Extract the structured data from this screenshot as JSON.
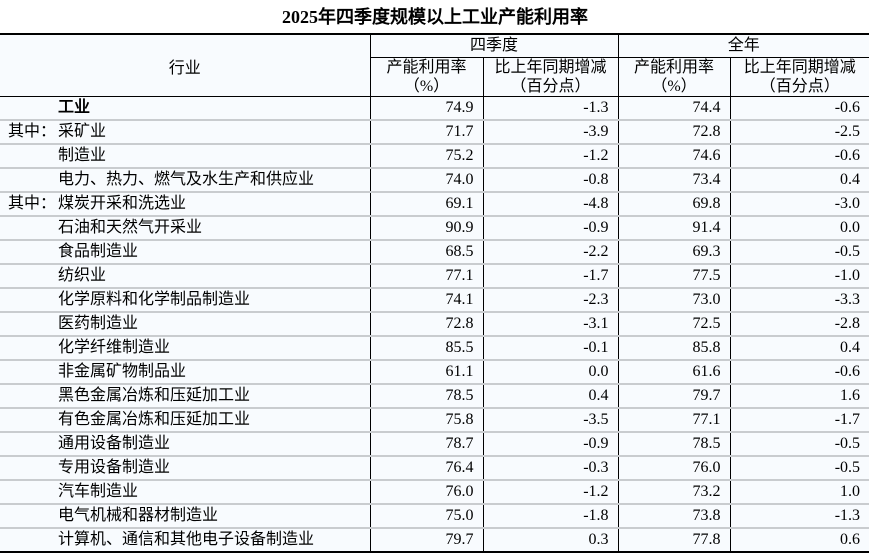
{
  "title": "2025年四季度规模以上工业产能利用率",
  "colors": {
    "table_background": "#f8fbfe",
    "row_divider_gray": "#c9cccf",
    "table_border_black": "#000000"
  },
  "table": {
    "industry_col_header": "行业",
    "col_groups": [
      {
        "label": "四季度",
        "subcols": [
          {
            "line1": "产能利用率",
            "line2": "（%）"
          },
          {
            "line1": "比上年同期增减",
            "line2": "（百分点）"
          }
        ]
      },
      {
        "label": "全年",
        "subcols": [
          {
            "line1": "产能利用率",
            "line2": "（%）"
          },
          {
            "line1": "比上年同期增减",
            "line2": "（百分点）"
          }
        ]
      }
    ],
    "rows": [
      {
        "prefix": "",
        "name": "工业",
        "bold": true,
        "values": [
          "74.9",
          "-1.3",
          "74.4",
          "-0.6"
        ]
      },
      {
        "prefix": "其中：",
        "name": "采矿业",
        "bold": false,
        "values": [
          "71.7",
          "-3.9",
          "72.8",
          "-2.5"
        ]
      },
      {
        "prefix": "",
        "name": "制造业",
        "bold": false,
        "values": [
          "75.2",
          "-1.2",
          "74.6",
          "-0.6"
        ]
      },
      {
        "prefix": "",
        "name": "电力、热力、燃气及水生产和供应业",
        "bold": false,
        "values": [
          "74.0",
          "-0.8",
          "73.4",
          "0.4"
        ]
      },
      {
        "prefix": "其中：",
        "name": "煤炭开采和洗选业",
        "bold": false,
        "values": [
          "69.1",
          "-4.8",
          "69.8",
          "-3.0"
        ]
      },
      {
        "prefix": "",
        "name": "石油和天然气开采业",
        "bold": false,
        "values": [
          "90.9",
          "-0.9",
          "91.4",
          "0.0"
        ]
      },
      {
        "prefix": "",
        "name": "食品制造业",
        "bold": false,
        "values": [
          "68.5",
          "-2.2",
          "69.3",
          "-0.5"
        ]
      },
      {
        "prefix": "",
        "name": "纺织业",
        "bold": false,
        "values": [
          "77.1",
          "-1.7",
          "77.5",
          "-1.0"
        ]
      },
      {
        "prefix": "",
        "name": "化学原料和化学制品制造业",
        "bold": false,
        "values": [
          "74.1",
          "-2.3",
          "73.0",
          "-3.3"
        ]
      },
      {
        "prefix": "",
        "name": "医药制造业",
        "bold": false,
        "values": [
          "72.8",
          "-3.1",
          "72.5",
          "-2.8"
        ]
      },
      {
        "prefix": "",
        "name": "化学纤维制造业",
        "bold": false,
        "values": [
          "85.5",
          "-0.1",
          "85.8",
          "0.4"
        ]
      },
      {
        "prefix": "",
        "name": "非金属矿物制品业",
        "bold": false,
        "values": [
          "61.1",
          "0.0",
          "61.6",
          "-0.6"
        ]
      },
      {
        "prefix": "",
        "name": "黑色金属冶炼和压延加工业",
        "bold": false,
        "values": [
          "78.5",
          "0.4",
          "79.7",
          "1.6"
        ]
      },
      {
        "prefix": "",
        "name": "有色金属冶炼和压延加工业",
        "bold": false,
        "values": [
          "75.8",
          "-3.5",
          "77.1",
          "-1.7"
        ]
      },
      {
        "prefix": "",
        "name": "通用设备制造业",
        "bold": false,
        "values": [
          "78.7",
          "-0.9",
          "78.5",
          "-0.5"
        ]
      },
      {
        "prefix": "",
        "name": "专用设备制造业",
        "bold": false,
        "values": [
          "76.4",
          "-0.3",
          "76.0",
          "-0.5"
        ]
      },
      {
        "prefix": "",
        "name": "汽车制造业",
        "bold": false,
        "values": [
          "76.0",
          "-1.2",
          "73.2",
          "1.0"
        ]
      },
      {
        "prefix": "",
        "name": "电气机械和器材制造业",
        "bold": false,
        "values": [
          "75.0",
          "-1.8",
          "73.8",
          "-1.3"
        ]
      },
      {
        "prefix": "",
        "name": "计算机、通信和其他电子设备制造业",
        "bold": false,
        "values": [
          "79.7",
          "0.3",
          "77.8",
          "0.6"
        ]
      }
    ]
  },
  "chart_data": {
    "type": "table",
    "title": "2025年四季度规模以上工业产能利用率",
    "columns": [
      "行业",
      "四季度产能利用率（%）",
      "四季度比上年同期增减（百分点）",
      "全年产能利用率（%）",
      "全年比上年同期增减（百分点）"
    ],
    "rows": [
      [
        "工业",
        74.9,
        -1.3,
        74.4,
        -0.6
      ],
      [
        "采矿业",
        71.7,
        -3.9,
        72.8,
        -2.5
      ],
      [
        "制造业",
        75.2,
        -1.2,
        74.6,
        -0.6
      ],
      [
        "电力、热力、燃气及水生产和供应业",
        74.0,
        -0.8,
        73.4,
        0.4
      ],
      [
        "煤炭开采和洗选业",
        69.1,
        -4.8,
        69.8,
        -3.0
      ],
      [
        "石油和天然气开采业",
        90.9,
        -0.9,
        91.4,
        0.0
      ],
      [
        "食品制造业",
        68.5,
        -2.2,
        69.3,
        -0.5
      ],
      [
        "纺织业",
        77.1,
        -1.7,
        77.5,
        -1.0
      ],
      [
        "化学原料和化学制品制造业",
        74.1,
        -2.3,
        73.0,
        -3.3
      ],
      [
        "医药制造业",
        72.8,
        -3.1,
        72.5,
        -2.8
      ],
      [
        "化学纤维制造业",
        85.5,
        -0.1,
        85.8,
        0.4
      ],
      [
        "非金属矿物制品业",
        61.1,
        0.0,
        61.6,
        -0.6
      ],
      [
        "黑色金属冶炼和压延加工业",
        78.5,
        0.4,
        79.7,
        1.6
      ],
      [
        "有色金属冶炼和压延加工业",
        75.8,
        -3.5,
        77.1,
        -1.7
      ],
      [
        "通用设备制造业",
        78.7,
        -0.9,
        78.5,
        -0.5
      ],
      [
        "专用设备制造业",
        76.4,
        -0.3,
        76.0,
        -0.5
      ],
      [
        "汽车制造业",
        76.0,
        -1.2,
        73.2,
        1.0
      ],
      [
        "电气机械和器材制造业",
        75.0,
        -1.8,
        73.8,
        -1.3
      ],
      [
        "计算机、通信和其他电子设备制造业",
        79.7,
        0.3,
        77.8,
        0.6
      ]
    ]
  }
}
